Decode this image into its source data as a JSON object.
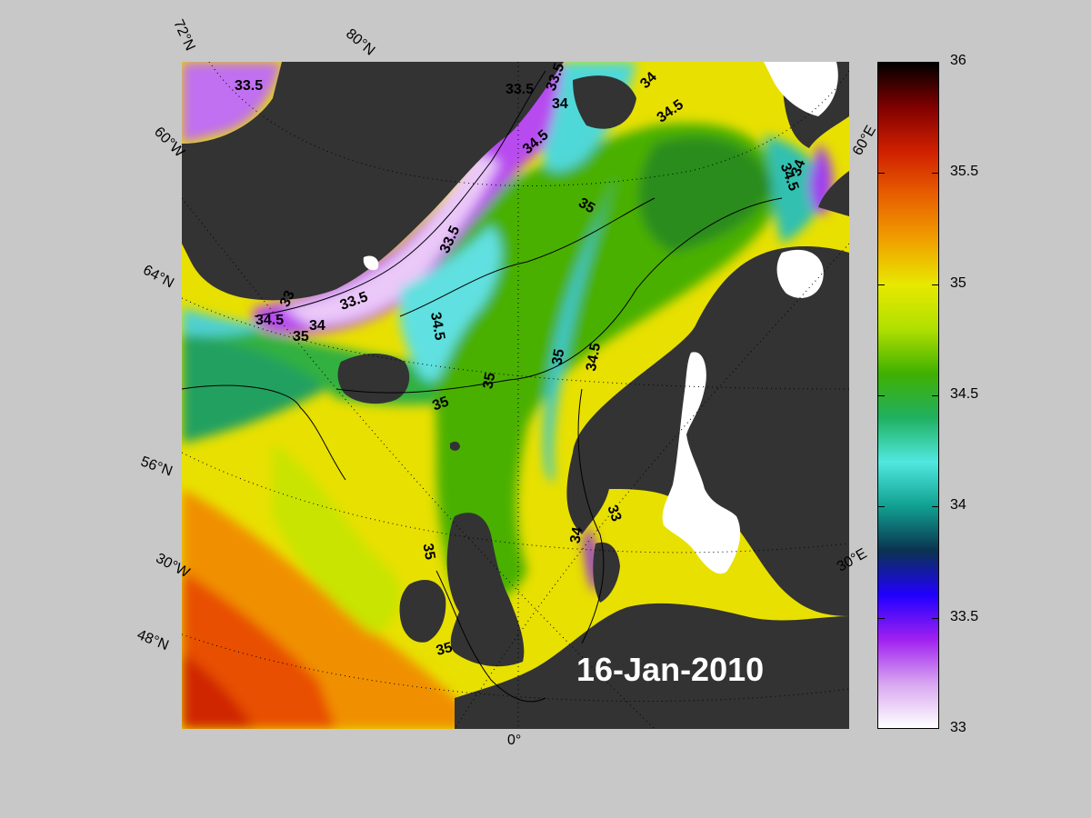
{
  "map": {
    "date": "16-Jan-2010",
    "lon_bottom_label": "0°",
    "graticule_labels": {
      "lat_72": "72°N",
      "lat_80": "80°N",
      "lat_64": "64°N",
      "lat_56": "56°N",
      "lat_48": "48°N",
      "lon_60w": "60°W",
      "lon_30w": "30°W",
      "lon_60e": "60°E",
      "lon_30e": "30°E"
    },
    "contour_labels": [
      "33.5",
      "33.5",
      "33.5",
      "34",
      "34",
      "34.5",
      "34.5",
      "34",
      "34.5",
      "35",
      "33.5",
      "33",
      "33.5",
      "34.5",
      "34",
      "35",
      "34.5",
      "35",
      "35",
      "35",
      "34.5",
      "34",
      "33",
      "35",
      "35"
    ],
    "colors": {
      "land": "#333333",
      "ice": "#ffffff",
      "background": "#c8c8c8"
    }
  },
  "colorbar": {
    "min": 33,
    "max": 36,
    "ticks": [
      "36",
      "35.5",
      "35",
      "34.5",
      "34",
      "33.5",
      "33"
    ],
    "stops": [
      "#ffffff",
      "#d8a6f0",
      "#a020f0",
      "#2000ff",
      "#0a3350",
      "#10a090",
      "#50e8e0",
      "#20b060",
      "#40b000",
      "#b0e000",
      "#e8e800",
      "#f0a000",
      "#e86000",
      "#d02000",
      "#800000",
      "#000000"
    ]
  }
}
